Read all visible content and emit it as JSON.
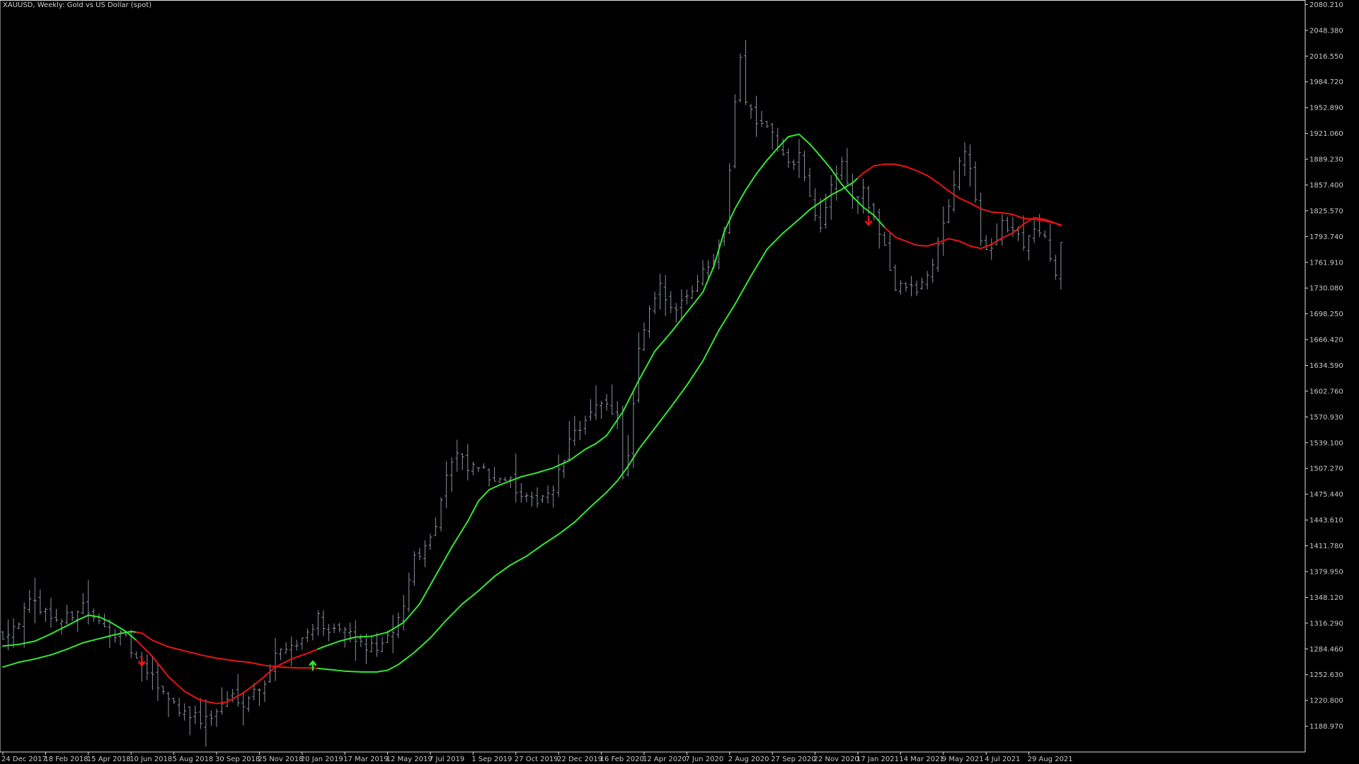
{
  "header": {
    "title": "XAUUSD, Weekly:  Gold vs US Dollar (spot)"
  },
  "colors": {
    "background": "#000000",
    "bars": "#8a93a6",
    "ma_fast": "#32e832",
    "ma_slow": "#32e832",
    "ma_bearish": "#e81414",
    "arrow_up": "#32e832",
    "arrow_down": "#e81414",
    "axis": "#e0e0e0",
    "labels": "#c8c8c8"
  },
  "chart_data": {
    "type": "ohlc",
    "symbol": "XAUUSD",
    "timeframe": "Weekly",
    "ylim": [
      1157.14,
      2083.21
    ],
    "y_ticks": [
      "2080.210",
      "2048.380",
      "2016.550",
      "1984.720",
      "1952.890",
      "1921.060",
      "1889.230",
      "1857.400",
      "1825.570",
      "1793.740",
      "1761.910",
      "1730.080",
      "1698.250",
      "1666.420",
      "1634.590",
      "1602.760",
      "1570.930",
      "1539.100",
      "1507.270",
      "1475.440",
      "1443.610",
      "1411.780",
      "1379.950",
      "1348.120",
      "1316.290",
      "1284.460",
      "1252.630",
      "1220.800",
      "1188.970"
    ],
    "x_ticks": [
      {
        "index": 0,
        "label": "24 Dec 2017"
      },
      {
        "index": 8,
        "label": "18 Feb 2018"
      },
      {
        "index": 16,
        "label": "15 Apr 2018"
      },
      {
        "index": 24,
        "label": "10 Jun 2018"
      },
      {
        "index": 32,
        "label": "5 Aug 2018"
      },
      {
        "index": 40,
        "label": "30 Sep 2018"
      },
      {
        "index": 48,
        "label": "25 Nov 2018"
      },
      {
        "index": 56,
        "label": "20 Jan 2019"
      },
      {
        "index": 64,
        "label": "17 Mar 2019"
      },
      {
        "index": 72,
        "label": "12 May 2019"
      },
      {
        "index": 80,
        "label": "7 Jul 2019"
      },
      {
        "index": 88,
        "label": "1 Sep 2019"
      },
      {
        "index": 96,
        "label": "27 Oct 2019"
      },
      {
        "index": 104,
        "label": "22 Dec 2019"
      },
      {
        "index": 112,
        "label": "16 Feb 2020"
      },
      {
        "index": 120,
        "label": "12 Apr 2020"
      },
      {
        "index": 128,
        "label": "7 Jun 2020"
      },
      {
        "index": 136,
        "label": "2 Aug 2020"
      },
      {
        "index": 144,
        "label": "27 Sep 2020"
      },
      {
        "index": 152,
        "label": "22 Nov 2020"
      },
      {
        "index": 160,
        "label": "17 Jan 2021"
      },
      {
        "index": 168,
        "label": "14 Mar 2021"
      },
      {
        "index": 176,
        "label": "9 May 2021"
      },
      {
        "index": 184,
        "label": "4 Jul 2021"
      },
      {
        "index": 192,
        "label": "29 Aug 2021"
      }
    ],
    "close_anchors": [
      [
        0,
        1302
      ],
      [
        3,
        1320
      ],
      [
        5,
        1340
      ],
      [
        7,
        1336
      ],
      [
        9,
        1325
      ],
      [
        11,
        1318
      ],
      [
        13,
        1328
      ],
      [
        15,
        1340
      ],
      [
        17,
        1320
      ],
      [
        19,
        1310
      ],
      [
        21,
        1304
      ],
      [
        23,
        1295
      ],
      [
        25,
        1270
      ],
      [
        27,
        1255
      ],
      [
        29,
        1240
      ],
      [
        31,
        1225
      ],
      [
        33,
        1210
      ],
      [
        35,
        1205
      ],
      [
        37,
        1196
      ],
      [
        39,
        1200
      ],
      [
        41,
        1215
      ],
      [
        43,
        1228
      ],
      [
        45,
        1220
      ],
      [
        47,
        1232
      ],
      [
        49,
        1245
      ],
      [
        51,
        1275
      ],
      [
        53,
        1290
      ],
      [
        55,
        1290
      ],
      [
        57,
        1305
      ],
      [
        59,
        1325
      ],
      [
        60,
        1315
      ],
      [
        61,
        1298
      ],
      [
        63,
        1310
      ],
      [
        65,
        1300
      ],
      [
        67,
        1290
      ],
      [
        69,
        1285
      ],
      [
        71,
        1290
      ],
      [
        73,
        1300
      ],
      [
        75,
        1340
      ],
      [
        77,
        1400
      ],
      [
        79,
        1410
      ],
      [
        81,
        1440
      ],
      [
        83,
        1500
      ],
      [
        85,
        1525
      ],
      [
        87,
        1505
      ],
      [
        89,
        1510
      ],
      [
        91,
        1495
      ],
      [
        93,
        1500
      ],
      [
        95,
        1490
      ],
      [
        97,
        1470
      ],
      [
        99,
        1465
      ],
      [
        101,
        1475
      ],
      [
        103,
        1480
      ],
      [
        105,
        1520
      ],
      [
        107,
        1555
      ],
      [
        109,
        1565
      ],
      [
        111,
        1580
      ],
      [
        113,
        1590
      ],
      [
        115,
        1570
      ],
      [
        116,
        1500
      ],
      [
        117,
        1520
      ],
      [
        119,
        1650
      ],
      [
        121,
        1700
      ],
      [
        123,
        1730
      ],
      [
        125,
        1705
      ],
      [
        127,
        1715
      ],
      [
        129,
        1730
      ],
      [
        131,
        1750
      ],
      [
        133,
        1770
      ],
      [
        135,
        1805
      ],
      [
        137,
        1955
      ],
      [
        138,
        2020
      ],
      [
        139,
        1960
      ],
      [
        141,
        1940
      ],
      [
        143,
        1935
      ],
      [
        145,
        1905
      ],
      [
        147,
        1880
      ],
      [
        149,
        1895
      ],
      [
        151,
        1840
      ],
      [
        153,
        1800
      ],
      [
        155,
        1860
      ],
      [
        157,
        1885
      ],
      [
        159,
        1840
      ],
      [
        161,
        1850
      ],
      [
        163,
        1812
      ],
      [
        165,
        1785
      ],
      [
        166,
        1755
      ],
      [
        167,
        1728
      ],
      [
        169,
        1733
      ],
      [
        171,
        1725
      ],
      [
        173,
        1745
      ],
      [
        175,
        1780
      ],
      [
        177,
        1835
      ],
      [
        178,
        1860
      ],
      [
        179,
        1880
      ],
      [
        180,
        1900
      ],
      [
        181,
        1880
      ],
      [
        183,
        1785
      ],
      [
        185,
        1780
      ],
      [
        187,
        1810
      ],
      [
        189,
        1800
      ],
      [
        191,
        1785
      ],
      [
        193,
        1805
      ],
      [
        195,
        1790
      ],
      [
        196,
        1760
      ],
      [
        197,
        1752
      ],
      [
        198,
        1785
      ]
    ],
    "ma_fast": {
      "name": "",
      "anchors": [
        [
          0,
          1288
        ],
        [
          3,
          1290
        ],
        [
          6,
          1294
        ],
        [
          9,
          1303
        ],
        [
          12,
          1313
        ],
        [
          14,
          1320
        ],
        [
          16,
          1326
        ],
        [
          18,
          1324
        ],
        [
          20,
          1318
        ],
        [
          23,
          1306
        ],
        [
          25,
          1295
        ],
        [
          28,
          1275
        ],
        [
          31,
          1250
        ],
        [
          34,
          1232
        ],
        [
          37,
          1221
        ],
        [
          40,
          1217
        ],
        [
          42,
          1219
        ],
        [
          45,
          1230
        ],
        [
          48,
          1245
        ],
        [
          51,
          1262
        ],
        [
          54,
          1272
        ],
        [
          57,
          1279
        ],
        [
          60,
          1287
        ],
        [
          63,
          1294
        ],
        [
          66,
          1299
        ],
        [
          69,
          1300
        ],
        [
          72,
          1305
        ],
        [
          75,
          1317
        ],
        [
          78,
          1340
        ],
        [
          81,
          1375
        ],
        [
          84,
          1410
        ],
        [
          87,
          1442
        ],
        [
          89,
          1467
        ],
        [
          91,
          1481
        ],
        [
          93,
          1487
        ],
        [
          95,
          1492
        ],
        [
          97,
          1497
        ],
        [
          100,
          1502
        ],
        [
          103,
          1508
        ],
        [
          106,
          1517
        ],
        [
          109,
          1531
        ],
        [
          111,
          1538
        ],
        [
          113,
          1548
        ],
        [
          116,
          1577
        ],
        [
          119,
          1616
        ],
        [
          122,
          1652
        ],
        [
          125,
          1675
        ],
        [
          128,
          1700
        ],
        [
          131,
          1725
        ],
        [
          133,
          1756
        ],
        [
          135,
          1800
        ],
        [
          137,
          1828
        ],
        [
          139,
          1851
        ],
        [
          141,
          1871
        ],
        [
          143,
          1888
        ],
        [
          145,
          1903
        ],
        [
          147,
          1917
        ],
        [
          149,
          1920
        ],
        [
          151,
          1908
        ],
        [
          153,
          1893
        ],
        [
          155,
          1877
        ],
        [
          157,
          1858
        ],
        [
          159,
          1843
        ],
        [
          161,
          1830
        ],
        [
          163,
          1820
        ],
        [
          165,
          1805
        ],
        [
          167,
          1793
        ],
        [
          169,
          1788
        ],
        [
          171,
          1783
        ],
        [
          173,
          1782
        ],
        [
          175,
          1786
        ],
        [
          177,
          1791
        ],
        [
          179,
          1788
        ],
        [
          181,
          1782
        ],
        [
          183,
          1779
        ],
        [
          185,
          1784
        ],
        [
          187,
          1792
        ],
        [
          189,
          1798
        ],
        [
          191,
          1809
        ],
        [
          193,
          1817
        ],
        [
          195,
          1815
        ],
        [
          197,
          1810
        ],
        [
          198,
          1807
        ]
      ],
      "bearish_ranges": [
        [
          25,
          59
        ],
        [
          165,
          198
        ]
      ]
    },
    "ma_slow": {
      "name": "",
      "anchors": [
        [
          0,
          1262
        ],
        [
          3,
          1268
        ],
        [
          6,
          1272
        ],
        [
          9,
          1277
        ],
        [
          12,
          1284
        ],
        [
          15,
          1292
        ],
        [
          18,
          1297
        ],
        [
          21,
          1302
        ],
        [
          24,
          1306
        ],
        [
          26,
          1304
        ],
        [
          28,
          1295
        ],
        [
          31,
          1287
        ],
        [
          34,
          1282
        ],
        [
          37,
          1277
        ],
        [
          40,
          1273
        ],
        [
          43,
          1270
        ],
        [
          46,
          1268
        ],
        [
          49,
          1264
        ],
        [
          52,
          1262
        ],
        [
          55,
          1261
        ],
        [
          58,
          1261
        ],
        [
          61,
          1259
        ],
        [
          64,
          1257
        ],
        [
          67,
          1256
        ],
        [
          70,
          1256
        ],
        [
          72,
          1258
        ],
        [
          74,
          1265
        ],
        [
          77,
          1280
        ],
        [
          80,
          1298
        ],
        [
          83,
          1320
        ],
        [
          86,
          1340
        ],
        [
          89,
          1356
        ],
        [
          92,
          1374
        ],
        [
          95,
          1388
        ],
        [
          98,
          1399
        ],
        [
          101,
          1413
        ],
        [
          104,
          1426
        ],
        [
          107,
          1441
        ],
        [
          110,
          1460
        ],
        [
          113,
          1478
        ],
        [
          115,
          1492
        ],
        [
          117,
          1510
        ],
        [
          119,
          1531
        ],
        [
          122,
          1557
        ],
        [
          125,
          1583
        ],
        [
          128,
          1610
        ],
        [
          131,
          1640
        ],
        [
          134,
          1678
        ],
        [
          137,
          1710
        ],
        [
          140,
          1745
        ],
        [
          143,
          1778
        ],
        [
          146,
          1798
        ],
        [
          149,
          1815
        ],
        [
          151,
          1827
        ],
        [
          153,
          1836
        ],
        [
          155,
          1845
        ],
        [
          157,
          1852
        ],
        [
          159,
          1860
        ],
        [
          161,
          1872
        ],
        [
          163,
          1881
        ],
        [
          165,
          1883
        ],
        [
          167,
          1883
        ],
        [
          169,
          1880
        ],
        [
          171,
          1875
        ],
        [
          173,
          1869
        ],
        [
          175,
          1860
        ],
        [
          177,
          1850
        ],
        [
          179,
          1841
        ],
        [
          181,
          1835
        ],
        [
          183,
          1828
        ],
        [
          185,
          1824
        ],
        [
          187,
          1823
        ],
        [
          189,
          1821
        ],
        [
          191,
          1816
        ],
        [
          193,
          1815
        ],
        [
          195,
          1813
        ],
        [
          197,
          1810
        ],
        [
          198,
          1808
        ]
      ],
      "bearish_ranges": [
        [
          25,
          59
        ],
        [
          160,
          198
        ]
      ]
    },
    "arrows": [
      {
        "index": 26,
        "direction": "down",
        "price": 1264
      },
      {
        "index": 58,
        "direction": "up",
        "price": 1269
      },
      {
        "index": 162,
        "direction": "down",
        "price": 1808
      }
    ]
  }
}
